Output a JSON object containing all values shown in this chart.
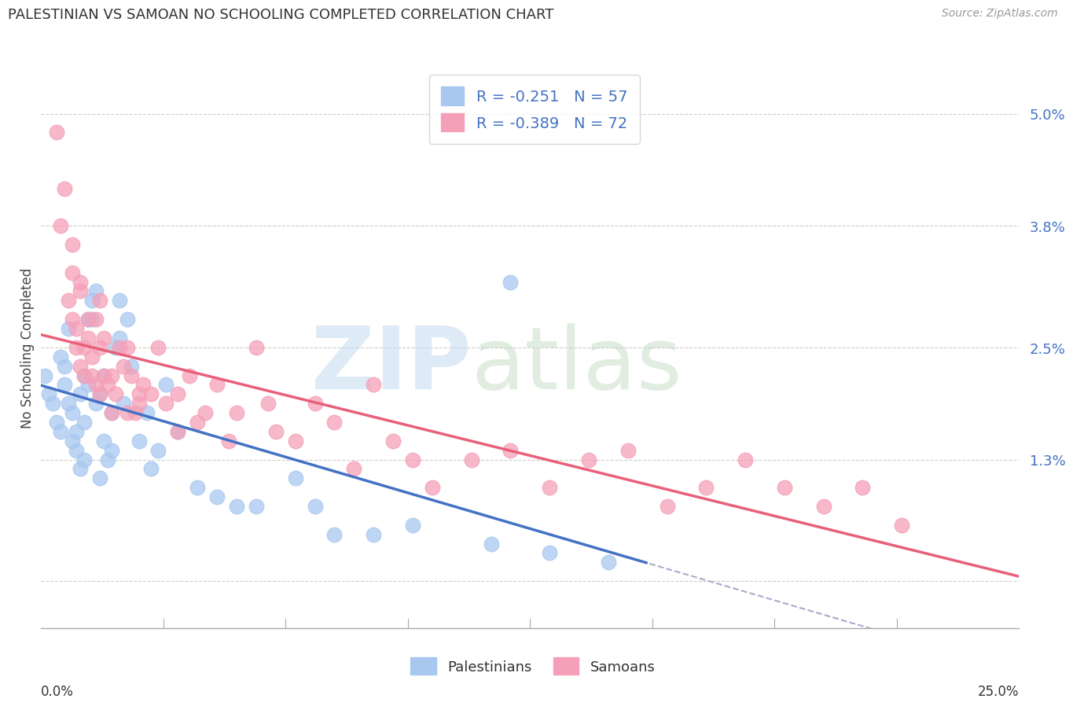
{
  "title": "PALESTINIAN VS SAMOAN NO SCHOOLING COMPLETED CORRELATION CHART",
  "source": "Source: ZipAtlas.com",
  "ylabel": "No Schooling Completed",
  "xlim": [
    0.0,
    0.25
  ],
  "ylim": [
    -0.005,
    0.055
  ],
  "palestinians_R": -0.251,
  "palestinians_N": 57,
  "samoans_R": -0.389,
  "samoans_N": 72,
  "blue_scatter_color": "#A8C8F0",
  "pink_scatter_color": "#F5A0B8",
  "blue_line_color": "#4472C4",
  "pink_line_color": "#E8607A",
  "dash_line_color": "#AAAACC",
  "right_tick_color": "#4472C4",
  "grid_color": "#CCCCCC",
  "background_color": "#FFFFFF",
  "ytick_vals": [
    0.0,
    0.013,
    0.025,
    0.038,
    0.05
  ],
  "ytick_labels": [
    "",
    "1.3%",
    "2.5%",
    "3.8%",
    "5.0%"
  ],
  "palestinians_x": [
    0.001,
    0.002,
    0.003,
    0.004,
    0.005,
    0.005,
    0.006,
    0.006,
    0.007,
    0.007,
    0.008,
    0.008,
    0.009,
    0.009,
    0.01,
    0.01,
    0.011,
    0.011,
    0.011,
    0.012,
    0.012,
    0.013,
    0.013,
    0.014,
    0.014,
    0.015,
    0.015,
    0.016,
    0.016,
    0.017,
    0.018,
    0.018,
    0.019,
    0.02,
    0.02,
    0.021,
    0.022,
    0.023,
    0.025,
    0.027,
    0.028,
    0.03,
    0.032,
    0.035,
    0.04,
    0.045,
    0.05,
    0.055,
    0.065,
    0.07,
    0.075,
    0.085,
    0.095,
    0.115,
    0.13,
    0.145,
    0.12
  ],
  "palestinians_y": [
    0.022,
    0.02,
    0.019,
    0.017,
    0.016,
    0.024,
    0.021,
    0.023,
    0.019,
    0.027,
    0.015,
    0.018,
    0.014,
    0.016,
    0.012,
    0.02,
    0.013,
    0.017,
    0.022,
    0.021,
    0.028,
    0.03,
    0.028,
    0.031,
    0.019,
    0.02,
    0.011,
    0.015,
    0.022,
    0.013,
    0.018,
    0.014,
    0.025,
    0.03,
    0.026,
    0.019,
    0.028,
    0.023,
    0.015,
    0.018,
    0.012,
    0.014,
    0.021,
    0.016,
    0.01,
    0.009,
    0.008,
    0.008,
    0.011,
    0.008,
    0.005,
    0.005,
    0.006,
    0.004,
    0.003,
    0.002,
    0.032
  ],
  "samoans_x": [
    0.004,
    0.005,
    0.006,
    0.007,
    0.008,
    0.008,
    0.009,
    0.009,
    0.01,
    0.01,
    0.011,
    0.011,
    0.012,
    0.012,
    0.013,
    0.013,
    0.014,
    0.014,
    0.015,
    0.015,
    0.016,
    0.016,
    0.017,
    0.018,
    0.018,
    0.019,
    0.02,
    0.021,
    0.022,
    0.022,
    0.023,
    0.024,
    0.025,
    0.026,
    0.028,
    0.03,
    0.032,
    0.035,
    0.038,
    0.04,
    0.042,
    0.045,
    0.048,
    0.05,
    0.055,
    0.058,
    0.06,
    0.065,
    0.07,
    0.075,
    0.08,
    0.085,
    0.09,
    0.095,
    0.1,
    0.11,
    0.12,
    0.13,
    0.14,
    0.15,
    0.16,
    0.17,
    0.18,
    0.19,
    0.2,
    0.21,
    0.22,
    0.008,
    0.01,
    0.015,
    0.025,
    0.035
  ],
  "samoans_y": [
    0.048,
    0.038,
    0.042,
    0.03,
    0.033,
    0.028,
    0.025,
    0.027,
    0.023,
    0.031,
    0.022,
    0.025,
    0.028,
    0.026,
    0.024,
    0.022,
    0.021,
    0.028,
    0.02,
    0.025,
    0.022,
    0.026,
    0.021,
    0.018,
    0.022,
    0.02,
    0.025,
    0.023,
    0.018,
    0.025,
    0.022,
    0.018,
    0.019,
    0.021,
    0.02,
    0.025,
    0.019,
    0.02,
    0.022,
    0.017,
    0.018,
    0.021,
    0.015,
    0.018,
    0.025,
    0.019,
    0.016,
    0.015,
    0.019,
    0.017,
    0.012,
    0.021,
    0.015,
    0.013,
    0.01,
    0.013,
    0.014,
    0.01,
    0.013,
    0.014,
    0.008,
    0.01,
    0.013,
    0.01,
    0.008,
    0.01,
    0.006,
    0.036,
    0.032,
    0.03,
    0.02,
    0.016
  ]
}
